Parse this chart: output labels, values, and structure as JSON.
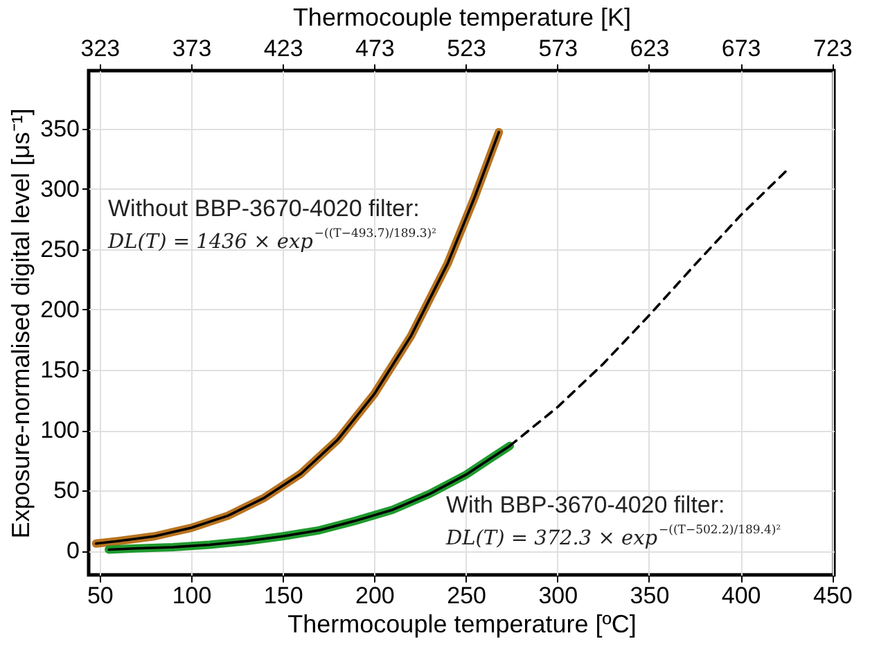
{
  "chart_data": {
    "type": "line",
    "xlabel": "Thermocouple temperature [ºC]",
    "x2label": "Thermocouple temperature [K]",
    "ylabel": "Exposure-normalised digital level [μs⁻¹]",
    "xlim": [
      44,
      451
    ],
    "xticks": [
      50,
      100,
      150,
      200,
      250,
      300,
      350,
      400,
      450
    ],
    "x2lim": [
      317,
      724
    ],
    "x2ticks": [
      323,
      373,
      423,
      473,
      523,
      573,
      623,
      673,
      723
    ],
    "ylim": [
      -20,
      398
    ],
    "yticks": [
      0,
      50,
      100,
      150,
      200,
      250,
      300,
      350
    ],
    "grid": true,
    "marker": "none",
    "annotations": [
      "Without BBP-3670-4020 filter:",
      "DL(T) = 1436 × exp$^{−((T−493.7)/189.3)²}$",
      "With BBP-3670-4020 filter:",
      "DL(T) = 372.3 × exp$^{−((T−502.2)/189.4)²}$"
    ],
    "series": [
      {
        "color": "#b8731f",
        "line_style": "solid",
        "x": [
          48,
          60,
          80,
          100,
          120,
          140,
          160,
          180,
          200,
          220,
          240,
          255,
          268
        ],
        "values": [
          6,
          8,
          12,
          19,
          29,
          44,
          64,
          92,
          130,
          178,
          238,
          294,
          347
        ]
      },
      {
        "color": "#1f9a2e",
        "line_style": "solid",
        "x": [
          55,
          70,
          90,
          110,
          130,
          150,
          170,
          190,
          210,
          230,
          250,
          264,
          274
        ],
        "values": [
          1,
          2,
          3,
          5,
          8,
          12,
          17,
          25,
          34,
          47,
          63,
          77,
          87
        ]
      },
      {
        "type": "line",
        "color": "#000000",
        "line_style": "solid",
        "x": [
          48,
          60,
          80,
          100,
          120,
          140,
          160,
          180,
          200,
          220,
          240,
          255,
          268
        ],
        "values": [
          6,
          8,
          12,
          19,
          29,
          44,
          64,
          92,
          130,
          178,
          238,
          294,
          347
        ]
      },
      {
        "type": "line",
        "color": "#000000",
        "line_style": "solid",
        "x": [
          55,
          70,
          90,
          110,
          130,
          150,
          170,
          190,
          210,
          230,
          250,
          264,
          274
        ],
        "values": [
          1,
          2,
          3,
          5,
          8,
          12,
          17,
          25,
          34,
          47,
          63,
          77,
          87
        ]
      },
      {
        "type": "line",
        "color": "#000000",
        "line_style": "dashed",
        "x": [
          274,
          300,
          325,
          350,
          375,
          400,
          425
        ],
        "values": [
          87,
          119,
          155,
          195,
          237,
          278,
          315
        ]
      }
    ]
  }
}
